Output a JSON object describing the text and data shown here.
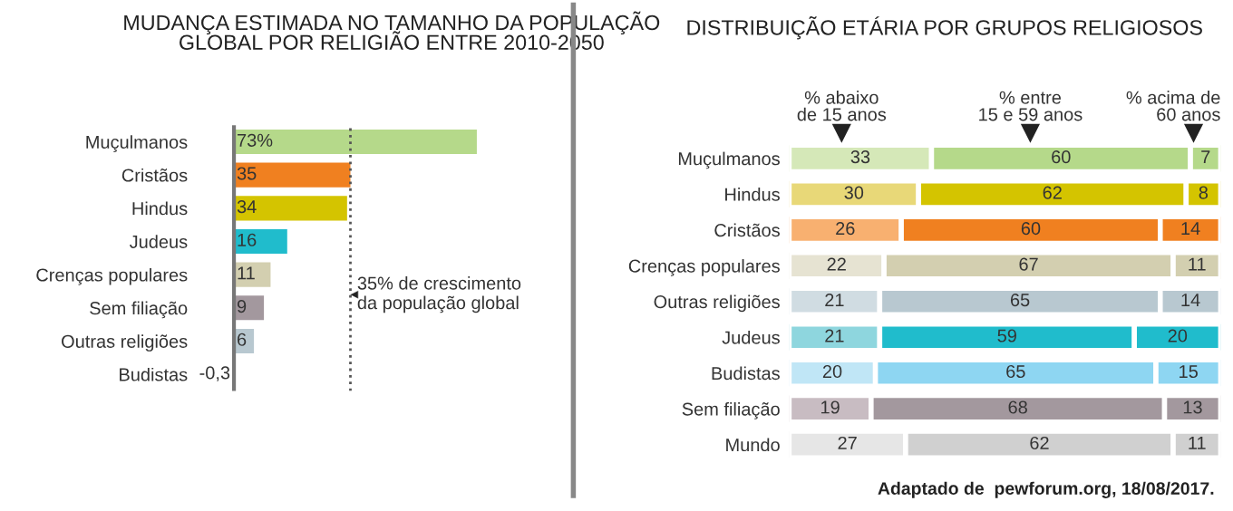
{
  "chart_data": [
    {
      "type": "bar",
      "orientation": "horizontal",
      "title": "MUDANÇA ESTIMADA NO TAMANHO DA POPULAÇÃO\nGLOBAL POR RELIGIÃO ENTRE 2010-2050",
      "categories": [
        "Muçulmanos",
        "Cristãos",
        "Hindus",
        "Judeus",
        "Crenças populares",
        "Sem filiação",
        "Outras religiões",
        "Budistas"
      ],
      "values": [
        73,
        35,
        34,
        16,
        11,
        9,
        6,
        -0.3
      ],
      "value_labels": [
        "73%",
        "35",
        "34",
        "16",
        "11",
        "9",
        "6",
        "-0,3"
      ],
      "colors": [
        "#b5d98a",
        "#f08020",
        "#d4c400",
        "#20bccc",
        "#d3cfb0",
        "#a3989e",
        "#b8c8d0",
        "#b8c8d0"
      ],
      "tick_labels": "y",
      "ref_lines": [
        {
          "axis": "x",
          "value": 35,
          "label": "35% de crescimento\nda população global",
          "line_style": "dotted",
          "color": "#555555"
        }
      ]
    },
    {
      "type": "bar",
      "orientation": "horizontal",
      "stacked": true,
      "data_labels": true,
      "title": "DISTRIBUIÇÃO ETÁRIA POR GRUPOS RELIGIOSOS",
      "categories": [
        "Muçulmanos",
        "Hindus",
        "Cristãos",
        "Crenças populares",
        "Outras religiões",
        "Judeus",
        "Budistas",
        "Sem filiação",
        "Mundo"
      ],
      "xlim": [
        0,
        100
      ],
      "tick_labels": "y",
      "series": [
        {
          "name": "% abaixo\nde 15 anos",
          "values": [
            33,
            30,
            26,
            22,
            21,
            21,
            20,
            19,
            27
          ],
          "colors": [
            "#d5e8b8",
            "#e8d878",
            "#f8b070",
            "#e6e3d2",
            "#d0dce2",
            "#8ed6de",
            "#c0e6f6",
            "#c8bcc2",
            "#e6e6e6"
          ]
        },
        {
          "name": "% entre\n15 e 59 anos",
          "values": [
            60,
            62,
            60,
            67,
            65,
            59,
            65,
            68,
            62
          ],
          "colors": [
            "#b5d98a",
            "#d4c400",
            "#f08020",
            "#d3cfb0",
            "#b8c8d0",
            "#20bccc",
            "#8ed6f2",
            "#a3989e",
            "#d0d0d0"
          ]
        },
        {
          "name": "% acima de\n60 anos",
          "values": [
            7,
            8,
            14,
            11,
            14,
            20,
            15,
            13,
            11
          ],
          "colors": [
            "#b5d98a",
            "#d4c400",
            "#f08020",
            "#d3cfb0",
            "#b8c8d0",
            "#20bccc",
            "#8ed6f2",
            "#a3989e",
            "#d0d0d0"
          ]
        }
      ],
      "annotations": [
        "Adaptado de  pewforum.org, 18/08/2017."
      ]
    }
  ]
}
